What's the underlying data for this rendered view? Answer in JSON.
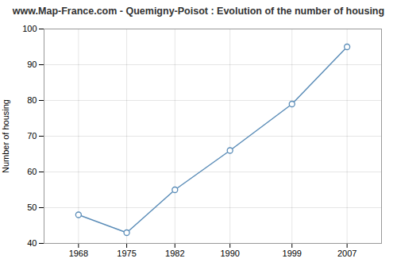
{
  "chart_data": {
    "type": "line",
    "title": "www.Map-France.com - Quemigny-Poisot : Evolution of the number of housing",
    "x": [
      1968,
      1975,
      1982,
      1990,
      1999,
      2007
    ],
    "values": [
      48,
      43,
      55,
      66,
      79,
      95
    ],
    "ylabel": "Number of housing",
    "xlim": [
      1963,
      2012
    ],
    "xticks": [
      1968,
      1975,
      1982,
      1990,
      1999,
      2007
    ],
    "ylim": [
      40,
      100
    ],
    "yticks": [
      40,
      50,
      60,
      70,
      80,
      90,
      100
    ],
    "color": "#5b8db8",
    "marker": "circle",
    "grid": true
  }
}
